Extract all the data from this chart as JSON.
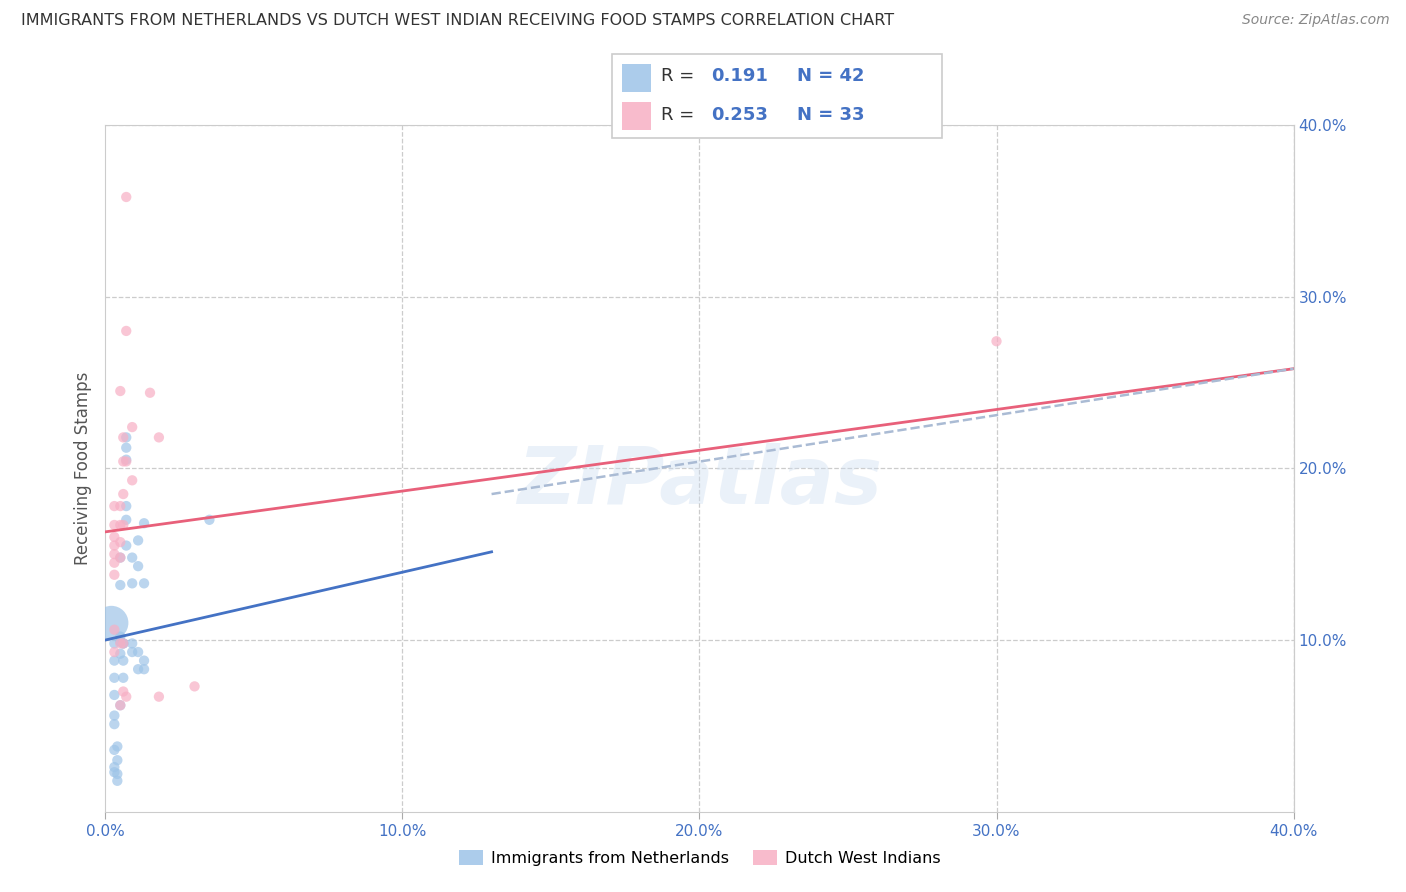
{
  "title": "IMMIGRANTS FROM NETHERLANDS VS DUTCH WEST INDIAN RECEIVING FOOD STAMPS CORRELATION CHART",
  "source": "Source: ZipAtlas.com",
  "ylabel": "Receiving Food Stamps",
  "xlim": [
    0,
    0.4
  ],
  "ylim": [
    0,
    0.4
  ],
  "watermark": "ZIPatlas",
  "blue_color": "#9ec4e8",
  "pink_color": "#f7afc4",
  "blue_line_color": "#4472c4",
  "pink_line_color": "#e8607a",
  "dashed_line_color": "#aabbd4",
  "label_color": "#4472c4",
  "r_label_color": "#333333",
  "blue_r": "0.191",
  "blue_n": "42",
  "pink_r": "0.253",
  "pink_n": "33",
  "blue_scatter": [
    [
      0.003,
      0.098
    ],
    [
      0.003,
      0.088
    ],
    [
      0.003,
      0.078
    ],
    [
      0.003,
      0.068
    ],
    [
      0.003,
      0.056
    ],
    [
      0.003,
      0.051
    ],
    [
      0.003,
      0.036
    ],
    [
      0.003,
      0.026
    ],
    [
      0.003,
      0.023
    ],
    [
      0.004,
      0.038
    ],
    [
      0.004,
      0.03
    ],
    [
      0.004,
      0.022
    ],
    [
      0.004,
      0.018
    ],
    [
      0.005,
      0.102
    ],
    [
      0.005,
      0.092
    ],
    [
      0.005,
      0.132
    ],
    [
      0.005,
      0.148
    ],
    [
      0.005,
      0.062
    ],
    [
      0.005,
      0.099
    ],
    [
      0.006,
      0.078
    ],
    [
      0.006,
      0.088
    ],
    [
      0.006,
      0.098
    ],
    [
      0.006,
      0.098
    ],
    [
      0.007,
      0.155
    ],
    [
      0.007,
      0.17
    ],
    [
      0.007,
      0.205
    ],
    [
      0.007,
      0.212
    ],
    [
      0.007,
      0.218
    ],
    [
      0.007,
      0.178
    ],
    [
      0.009,
      0.098
    ],
    [
      0.009,
      0.133
    ],
    [
      0.009,
      0.148
    ],
    [
      0.009,
      0.093
    ],
    [
      0.011,
      0.083
    ],
    [
      0.011,
      0.143
    ],
    [
      0.011,
      0.158
    ],
    [
      0.011,
      0.093
    ],
    [
      0.013,
      0.083
    ],
    [
      0.013,
      0.133
    ],
    [
      0.013,
      0.168
    ],
    [
      0.013,
      0.088
    ],
    [
      0.035,
      0.17
    ]
  ],
  "blue_sizes": [
    55,
    55,
    55,
    55,
    55,
    55,
    55,
    55,
    55,
    55,
    55,
    55,
    55,
    55,
    55,
    55,
    55,
    55,
    55,
    55,
    55,
    55,
    55,
    55,
    55,
    55,
    55,
    55,
    55,
    55,
    55,
    55,
    55,
    55,
    55,
    55,
    55,
    55,
    55,
    55,
    55,
    55
  ],
  "blue_big_idx": 3,
  "blue_big_size": 600,
  "pink_scatter": [
    [
      0.003,
      0.178
    ],
    [
      0.003,
      0.167
    ],
    [
      0.003,
      0.16
    ],
    [
      0.003,
      0.155
    ],
    [
      0.003,
      0.15
    ],
    [
      0.003,
      0.145
    ],
    [
      0.003,
      0.138
    ],
    [
      0.003,
      0.106
    ],
    [
      0.003,
      0.093
    ],
    [
      0.005,
      0.245
    ],
    [
      0.005,
      0.178
    ],
    [
      0.005,
      0.167
    ],
    [
      0.005,
      0.157
    ],
    [
      0.005,
      0.148
    ],
    [
      0.005,
      0.098
    ],
    [
      0.005,
      0.062
    ],
    [
      0.006,
      0.204
    ],
    [
      0.006,
      0.218
    ],
    [
      0.006,
      0.185
    ],
    [
      0.006,
      0.167
    ],
    [
      0.006,
      0.098
    ],
    [
      0.006,
      0.07
    ],
    [
      0.007,
      0.358
    ],
    [
      0.007,
      0.28
    ],
    [
      0.007,
      0.204
    ],
    [
      0.007,
      0.067
    ],
    [
      0.009,
      0.224
    ],
    [
      0.009,
      0.193
    ],
    [
      0.015,
      0.244
    ],
    [
      0.018,
      0.218
    ],
    [
      0.018,
      0.067
    ],
    [
      0.03,
      0.073
    ],
    [
      0.3,
      0.274
    ]
  ],
  "pink_sizes": [
    55,
    55,
    55,
    55,
    55,
    55,
    55,
    55,
    55,
    55,
    55,
    55,
    55,
    55,
    55,
    55,
    55,
    55,
    55,
    55,
    55,
    55,
    55,
    55,
    55,
    55,
    55,
    55,
    55,
    55,
    55,
    55,
    55
  ],
  "blue_line": [
    0.0,
    0.1,
    0.4,
    0.258
  ],
  "blue_line_solid_end": 0.13,
  "pink_line": [
    0.0,
    0.163,
    0.4,
    0.258
  ],
  "dashed_line": [
    0.13,
    0.185,
    0.4,
    0.258
  ]
}
